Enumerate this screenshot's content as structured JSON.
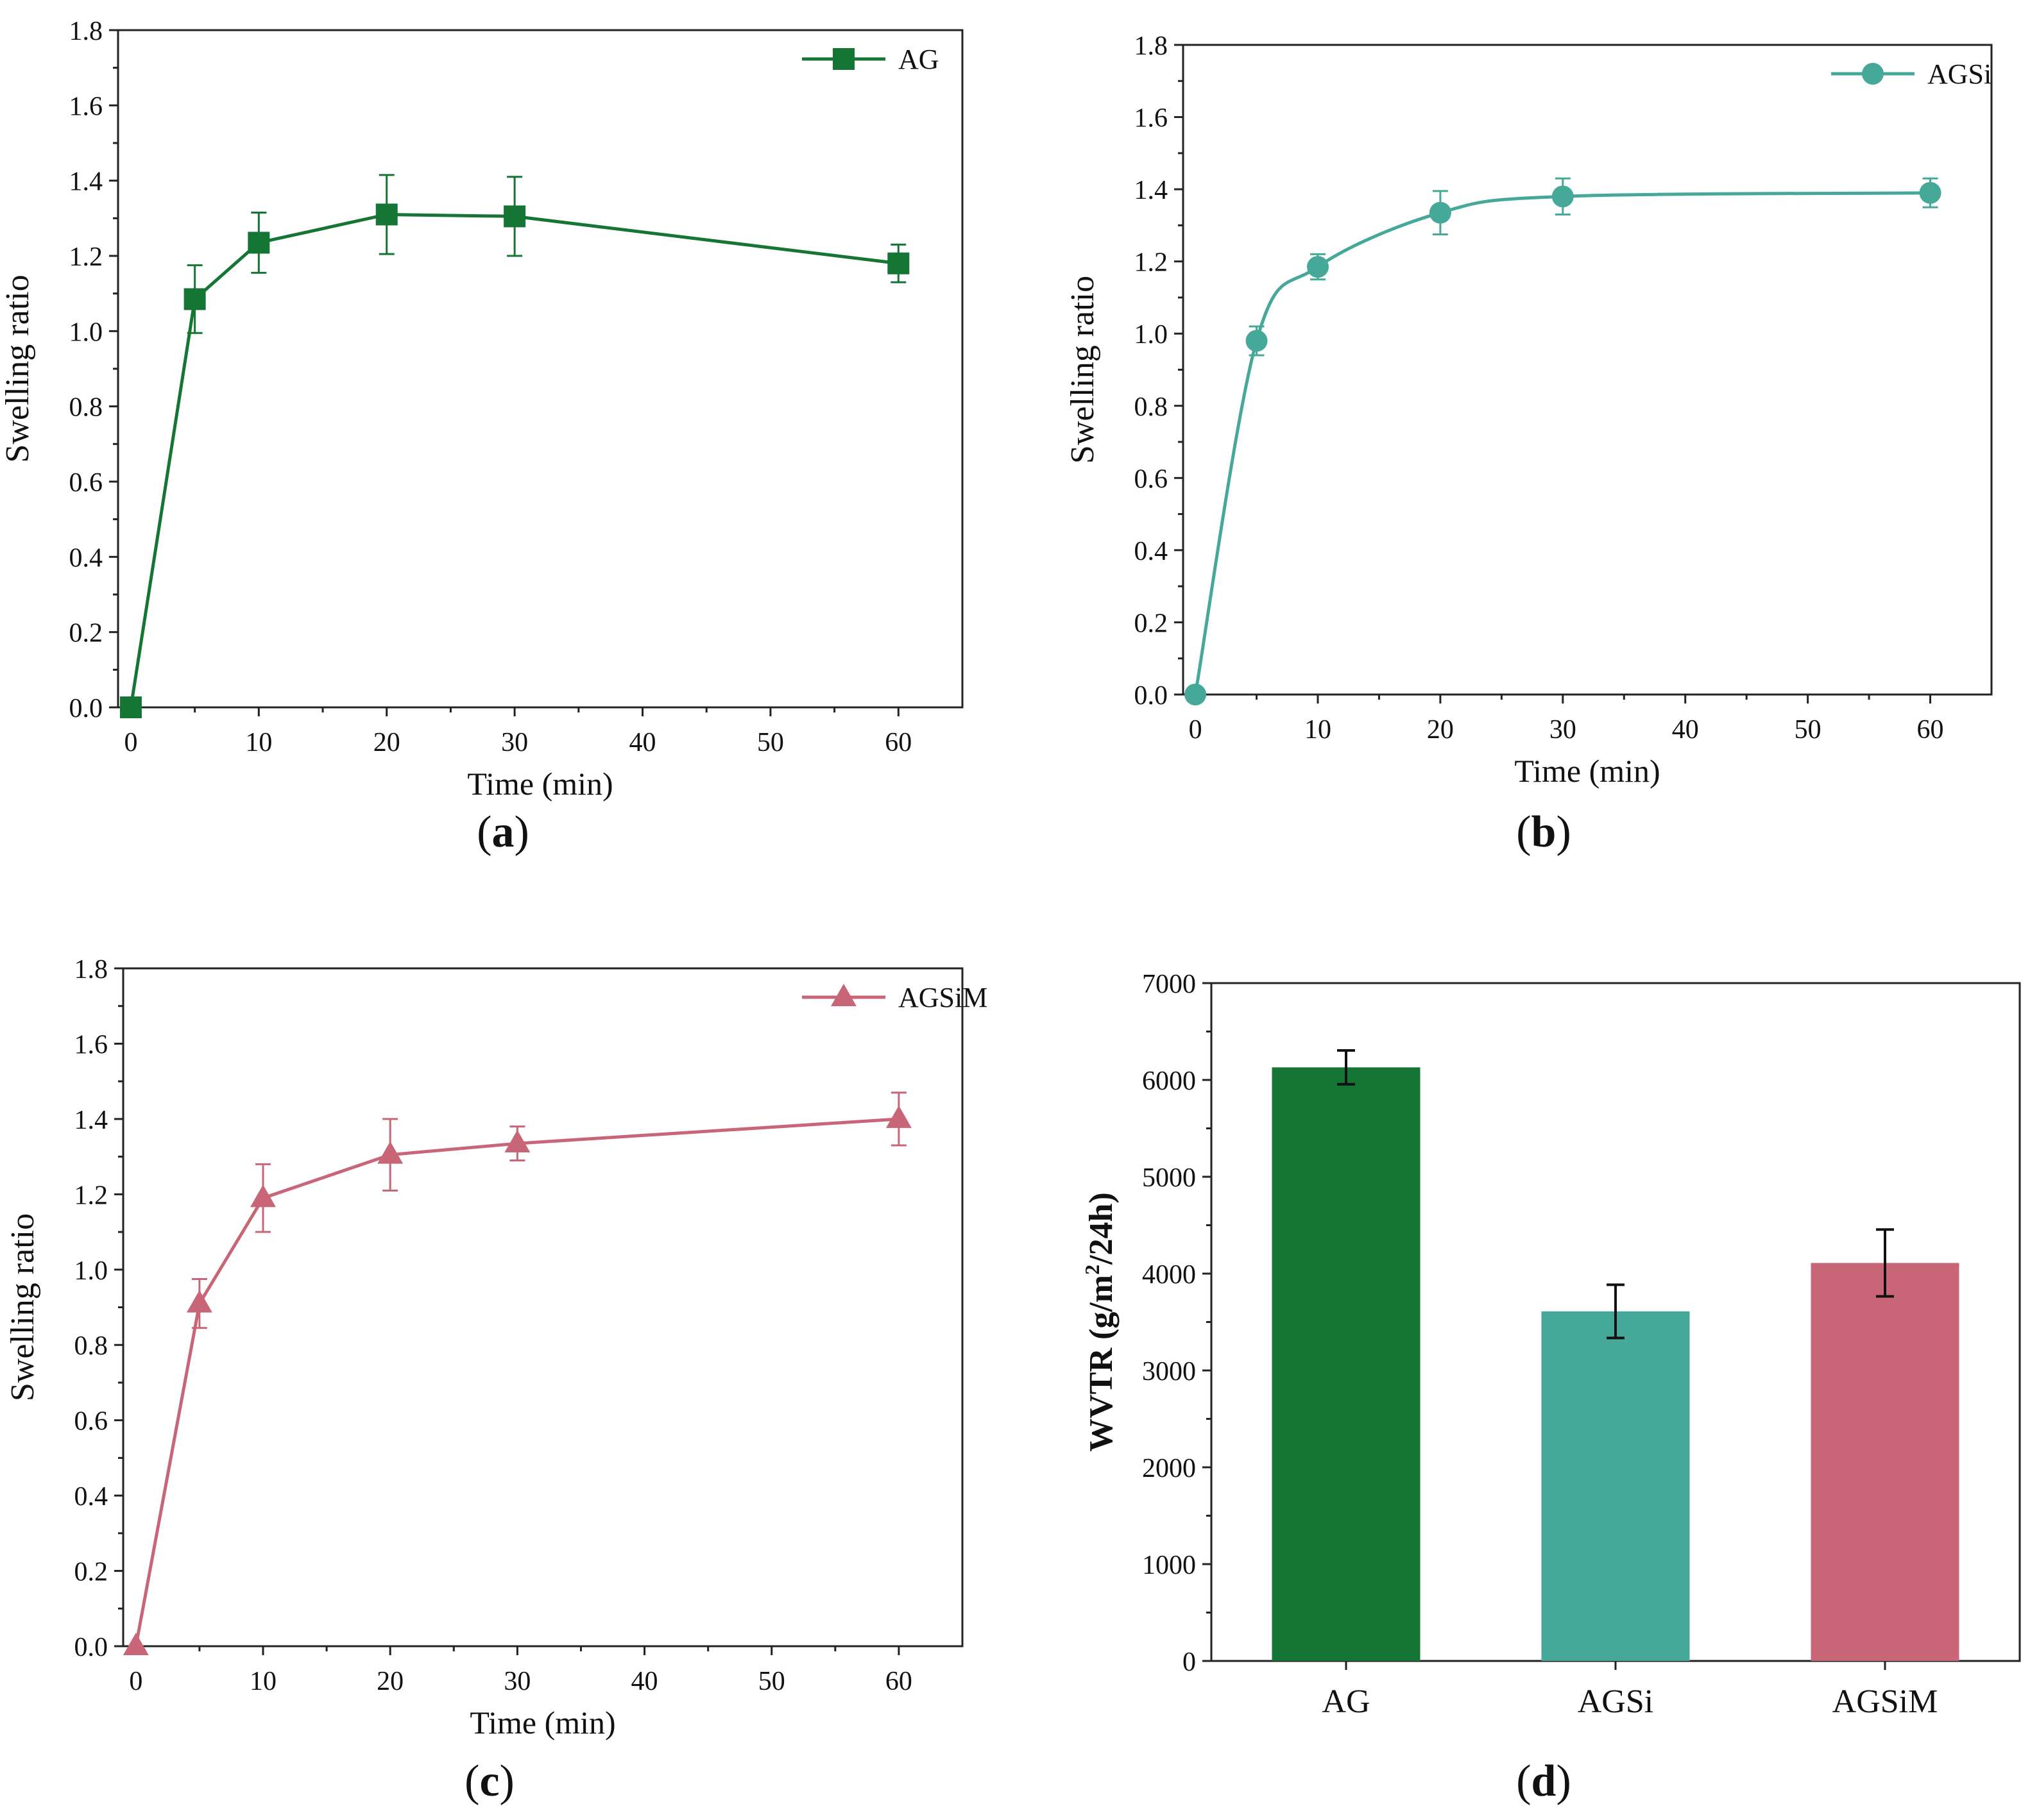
{
  "colors": {
    "AG": "#157535",
    "AGSi": "#45a899",
    "AGSiM": "#c86677",
    "axis": "#222222",
    "errbar": "#111111"
  },
  "chart_data": [
    {
      "id": "a",
      "type": "line",
      "panel_label": "a",
      "curve": "linear",
      "marker": "square",
      "color_key": "AG",
      "xlabel": "Time (min)",
      "ylabel": "Swelling ratio",
      "xlim": [
        -1,
        65
      ],
      "ylim": [
        0,
        1.8
      ],
      "xticks": [
        0,
        10,
        20,
        30,
        40,
        50,
        60
      ],
      "yticks": [
        0.0,
        0.2,
        0.4,
        0.6,
        0.8,
        1.0,
        1.2,
        1.4,
        1.6,
        1.8
      ],
      "yticks_labels": [
        "0.0",
        "0.2",
        "0.4",
        "0.6",
        "0.8",
        "1.0",
        "1.2",
        "1.4",
        "1.6",
        "1.8"
      ],
      "legend": "AG",
      "legend_position": "top-right",
      "series": [
        {
          "name": "AG",
          "x": [
            0,
            5,
            10,
            20,
            30,
            60
          ],
          "y": [
            0.0,
            1.085,
            1.235,
            1.31,
            1.305,
            1.18
          ],
          "err": [
            0.0,
            0.09,
            0.08,
            0.105,
            0.105,
            0.05
          ]
        }
      ]
    },
    {
      "id": "b",
      "type": "line",
      "panel_label": "b",
      "curve": "smooth",
      "marker": "circle",
      "color_key": "AGSi",
      "xlabel": "Time (min)",
      "ylabel": "Swelling ratio",
      "xlim": [
        -1,
        65
      ],
      "ylim": [
        0,
        1.8
      ],
      "xticks": [
        0,
        10,
        20,
        30,
        40,
        50,
        60
      ],
      "yticks": [
        0.0,
        0.2,
        0.4,
        0.6,
        0.8,
        1.0,
        1.2,
        1.4,
        1.6,
        1.8
      ],
      "yticks_labels": [
        "0.0",
        "0.2",
        "0.4",
        "0.6",
        "0.8",
        "1.0",
        "1.2",
        "1.4",
        "1.6",
        "1.8"
      ],
      "legend": "AGSi",
      "legend_position": "top-right",
      "series": [
        {
          "name": "AGSi",
          "x": [
            0,
            5,
            10,
            20,
            30,
            60
          ],
          "y": [
            0.0,
            0.98,
            1.185,
            1.335,
            1.38,
            1.39
          ],
          "err": [
            0.0,
            0.04,
            0.035,
            0.06,
            0.05,
            0.04
          ]
        }
      ]
    },
    {
      "id": "c",
      "type": "line",
      "panel_label": "c",
      "curve": "linear",
      "marker": "triangle",
      "color_key": "AGSiM",
      "xlabel": "Time (min)",
      "ylabel": "Swelling ratio",
      "xlim": [
        -1,
        65
      ],
      "ylim": [
        0,
        1.8
      ],
      "xticks": [
        0,
        10,
        20,
        30,
        40,
        50,
        60
      ],
      "yticks": [
        0.0,
        0.2,
        0.4,
        0.6,
        0.8,
        1.0,
        1.2,
        1.4,
        1.6,
        1.8
      ],
      "yticks_labels": [
        "0.0",
        "0.2",
        "0.4",
        "0.6",
        "0.8",
        "1.0",
        "1.2",
        "1.4",
        "1.6",
        "1.8"
      ],
      "legend": "AGSiM",
      "legend_position": "top-right",
      "series": [
        {
          "name": "AGSiM",
          "x": [
            0,
            5,
            10,
            20,
            30,
            60
          ],
          "y": [
            0.0,
            0.91,
            1.19,
            1.305,
            1.335,
            1.4
          ],
          "err": [
            0.0,
            0.065,
            0.09,
            0.095,
            0.045,
            0.07
          ]
        }
      ]
    },
    {
      "id": "d",
      "type": "bar",
      "panel_label": "d",
      "ylabel_main": "WVTR (g/m",
      "ylabel_sup": "2",
      "ylabel_tail": "/24h)",
      "ylim": [
        0,
        7000
      ],
      "yticks": [
        0,
        1000,
        2000,
        3000,
        4000,
        5000,
        6000,
        7000
      ],
      "categories": [
        "AG",
        "AGSi",
        "AGSiM"
      ],
      "values": [
        6130,
        3610,
        4110
      ],
      "err": [
        175,
        275,
        345
      ]
    }
  ]
}
